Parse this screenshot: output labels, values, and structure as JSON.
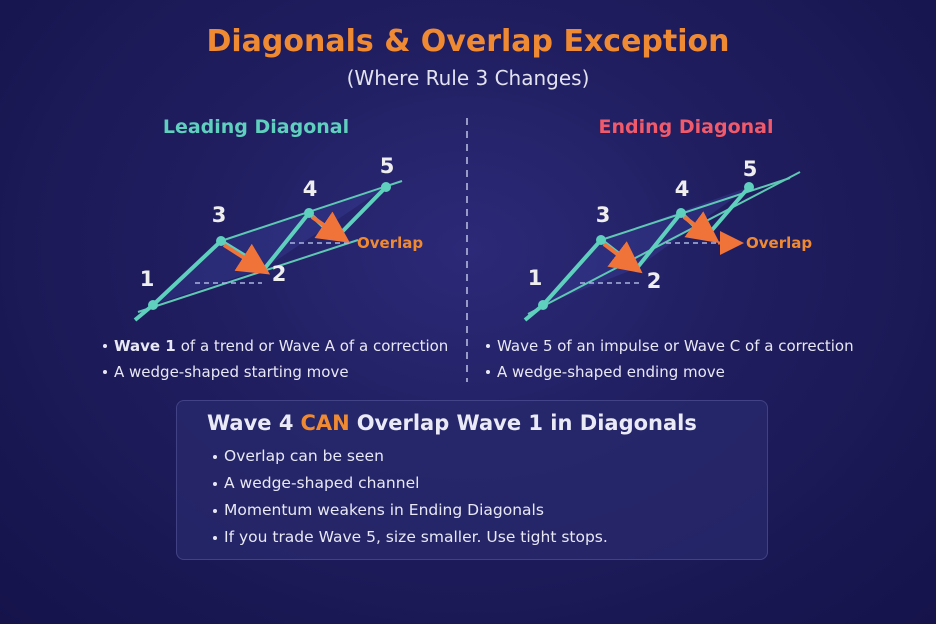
{
  "header": {
    "title": "Diagonals & Overlap Exception",
    "subtitle": "(Where Rule 3 Changes)"
  },
  "panels": [
    {
      "title": "Leading Diagonal",
      "wave_labels": [
        "1",
        "2",
        "3",
        "4",
        "5"
      ],
      "overlap_label": "Overlap",
      "bullets": [
        {
          "bold": "Wave 1",
          "text": "of a trend or Wave A of a correction"
        },
        {
          "text": "A wedge-shaped starting move"
        }
      ]
    },
    {
      "title": "Ending Diagonal",
      "wave_labels": [
        "1",
        "2",
        "3",
        "4",
        "5"
      ],
      "overlap_label": "Overlap",
      "bullets": [
        {
          "text": "Wave 5 of an impulse or Wave C of a correction"
        },
        {
          "text": "A wedge-shaped ending move"
        }
      ]
    }
  ],
  "summary": {
    "heading": {
      "before": "Wave 4",
      "emphasis": "CAN",
      "after": "Overlap Wave 1 in Diagonals"
    },
    "bullets": [
      "Overlap can be seen",
      "A wedge-shaped channel",
      "Momentum weakens in Ending Diagonals",
      "If you trade Wave 5, size smaller. Use tight stops."
    ]
  }
}
